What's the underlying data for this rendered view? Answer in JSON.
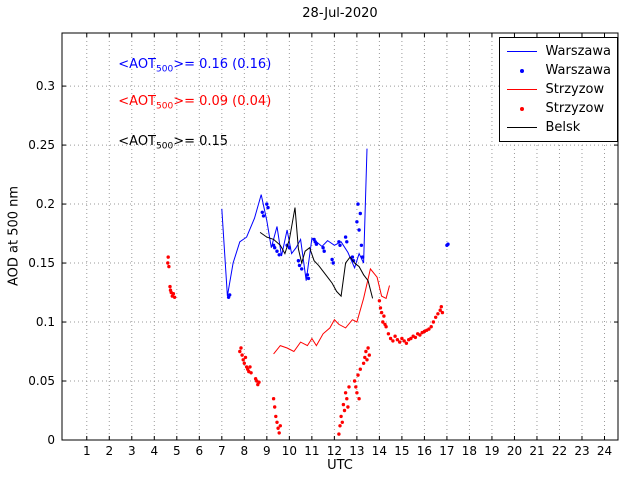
{
  "figure": {
    "title": "28-Jul-2020",
    "xlabel": "UTC",
    "ylabel": "AOD at 500 nm"
  },
  "chart_data": {
    "type": "line",
    "title": "28-Jul-2020",
    "xlabel": "UTC",
    "ylabel": "AOD at 500 nm",
    "xlim": [
      -0.1,
      24.6
    ],
    "ylim": [
      0,
      0.345
    ],
    "grid": true,
    "xticks": [
      1,
      2,
      3,
      4,
      5,
      6,
      7,
      8,
      9,
      10,
      11,
      12,
      13,
      14,
      15,
      16,
      17,
      18,
      19,
      20,
      21,
      22,
      23,
      24
    ],
    "yticks": [
      0,
      0.05,
      0.1,
      0.15,
      0.2,
      0.25,
      0.3
    ],
    "ytick_labels": [
      "0",
      "0.05",
      "0.1",
      "0.15",
      "0.2",
      "0.25",
      "0.3"
    ],
    "legend": {
      "position": "top-right",
      "entries": [
        {
          "label": "Warszawa",
          "marker": "line",
          "color": "#0000ff"
        },
        {
          "label": "Warszawa",
          "marker": "dot",
          "color": "#0000ff"
        },
        {
          "label": "Strzyzow",
          "marker": "line",
          "color": "#ff0000"
        },
        {
          "label": "Strzyzow",
          "marker": "dot",
          "color": "#ff0000"
        },
        {
          "label": "Belsk",
          "marker": "line",
          "color": "#000000"
        }
      ]
    },
    "annotations": [
      {
        "prefix": "<AOT",
        "sub": "500",
        "suffix": ">= 0.16 (0.16)",
        "color": "#0000ff",
        "x": 2.4,
        "y": 0.317
      },
      {
        "prefix": "<AOT",
        "sub": "500",
        "suffix": ">= 0.09 (0.04)",
        "color": "#ff0000",
        "x": 2.4,
        "y": 0.286
      },
      {
        "prefix": "<AOT",
        "sub": "500",
        "suffix": ">= 0.15",
        "color": "#000000",
        "x": 2.4,
        "y": 0.252
      }
    ],
    "series": [
      {
        "name": "Warszawa",
        "type": "line",
        "color": "#0000ff",
        "x": [
          7.0,
          7.25,
          7.5,
          7.8,
          8.1,
          8.45,
          8.75,
          9.0,
          9.2,
          9.45,
          9.65,
          9.9,
          10.1,
          10.3,
          10.5,
          10.75,
          11.0,
          11.2,
          11.45,
          11.7,
          12.0,
          12.3,
          12.6,
          12.9,
          13.1,
          13.3,
          13.45
        ],
        "y": [
          0.196,
          0.122,
          0.15,
          0.168,
          0.172,
          0.188,
          0.208,
          0.186,
          0.163,
          0.181,
          0.156,
          0.178,
          0.158,
          0.163,
          0.17,
          0.135,
          0.171,
          0.168,
          0.164,
          0.169,
          0.165,
          0.168,
          0.159,
          0.146,
          0.158,
          0.15,
          0.247
        ]
      },
      {
        "name": "Warszawa",
        "type": "scatter",
        "color": "#0000ff",
        "x": [
          7.3,
          7.35,
          8.8,
          8.85,
          9.0,
          9.05,
          9.3,
          9.35,
          9.45,
          9.55,
          9.9,
          10.0,
          10.4,
          10.45,
          10.55,
          10.8,
          10.85,
          11.1,
          11.15,
          11.2,
          11.5,
          11.55,
          11.9,
          11.95,
          12.2,
          12.25,
          12.5,
          12.55,
          12.8,
          12.85,
          13.0,
          13.05,
          13.1,
          13.15,
          13.2,
          13.25,
          17.0,
          17.05
        ],
        "y": [
          0.121,
          0.123,
          0.193,
          0.19,
          0.2,
          0.197,
          0.165,
          0.163,
          0.16,
          0.157,
          0.165,
          0.163,
          0.152,
          0.148,
          0.145,
          0.14,
          0.137,
          0.17,
          0.168,
          0.166,
          0.163,
          0.16,
          0.153,
          0.15,
          0.168,
          0.165,
          0.172,
          0.168,
          0.155,
          0.152,
          0.185,
          0.2,
          0.178,
          0.192,
          0.165,
          0.155,
          0.165,
          0.166
        ]
      },
      {
        "name": "Strzyzow",
        "type": "line",
        "color": "#ff0000",
        "x": [
          9.3,
          9.6,
          9.9,
          10.2,
          10.5,
          10.8,
          11.0,
          11.2,
          11.5,
          11.8,
          12.0,
          12.2,
          12.5,
          12.8,
          13.0,
          13.3,
          13.6,
          13.9,
          14.1,
          14.3,
          14.45
        ],
        "y": [
          0.073,
          0.08,
          0.078,
          0.075,
          0.083,
          0.08,
          0.086,
          0.08,
          0.09,
          0.095,
          0.102,
          0.098,
          0.095,
          0.102,
          0.1,
          0.12,
          0.145,
          0.138,
          0.122,
          0.12,
          0.131
        ]
      },
      {
        "name": "Strzyzow",
        "type": "scatter",
        "color": "#ff0000",
        "x": [
          4.6,
          4.62,
          4.65,
          4.7,
          4.72,
          4.75,
          4.8,
          4.85,
          4.9,
          7.8,
          7.85,
          7.9,
          7.95,
          8.0,
          8.05,
          8.1,
          8.15,
          8.2,
          8.25,
          8.3,
          8.5,
          8.55,
          8.6,
          8.65,
          9.3,
          9.35,
          9.4,
          9.45,
          9.5,
          9.55,
          9.6,
          12.2,
          12.25,
          12.3,
          12.35,
          12.4,
          12.45,
          12.5,
          12.55,
          12.6,
          12.65,
          12.9,
          12.95,
          13.0,
          13.05,
          13.1,
          13.15,
          13.3,
          13.35,
          13.4,
          13.45,
          13.5,
          13.55,
          14.0,
          14.05,
          14.1,
          14.15,
          14.2,
          14.25,
          14.3,
          14.4,
          14.5,
          14.6,
          14.7,
          14.8,
          14.9,
          15.0,
          15.1,
          15.2,
          15.3,
          15.4,
          15.5,
          15.6,
          15.7,
          15.8,
          15.9,
          16.0,
          16.1,
          16.2,
          16.3,
          16.4,
          16.5,
          16.6,
          16.7,
          16.75,
          16.8
        ],
        "y": [
          0.15,
          0.155,
          0.147,
          0.13,
          0.127,
          0.125,
          0.122,
          0.124,
          0.121,
          0.075,
          0.078,
          0.072,
          0.068,
          0.065,
          0.07,
          0.062,
          0.06,
          0.058,
          0.062,
          0.057,
          0.052,
          0.05,
          0.047,
          0.049,
          0.035,
          0.028,
          0.02,
          0.015,
          0.01,
          0.006,
          0.012,
          0.005,
          0.012,
          0.02,
          0.015,
          0.03,
          0.025,
          0.04,
          0.035,
          0.028,
          0.045,
          0.05,
          0.045,
          0.04,
          0.055,
          0.035,
          0.06,
          0.065,
          0.07,
          0.075,
          0.068,
          0.078,
          0.072,
          0.118,
          0.112,
          0.108,
          0.1,
          0.105,
          0.098,
          0.096,
          0.09,
          0.086,
          0.084,
          0.088,
          0.085,
          0.083,
          0.086,
          0.084,
          0.082,
          0.085,
          0.086,
          0.088,
          0.087,
          0.09,
          0.089,
          0.091,
          0.092,
          0.093,
          0.094,
          0.096,
          0.1,
          0.104,
          0.107,
          0.11,
          0.113,
          0.108
        ]
      },
      {
        "name": "Belsk",
        "type": "line",
        "color": "#000000",
        "x": [
          8.7,
          9.0,
          9.3,
          9.6,
          9.8,
          10.0,
          10.25,
          10.4,
          10.55,
          10.7,
          10.9,
          11.1,
          11.3,
          11.5,
          11.7,
          11.9,
          12.1,
          12.3,
          12.5,
          12.7,
          12.9,
          13.1,
          13.3,
          13.5,
          13.7
        ],
        "y": [
          0.176,
          0.172,
          0.17,
          0.165,
          0.158,
          0.17,
          0.197,
          0.162,
          0.15,
          0.16,
          0.163,
          0.152,
          0.148,
          0.143,
          0.138,
          0.133,
          0.126,
          0.122,
          0.15,
          0.155,
          0.15,
          0.147,
          0.14,
          0.135,
          0.12
        ]
      }
    ]
  }
}
